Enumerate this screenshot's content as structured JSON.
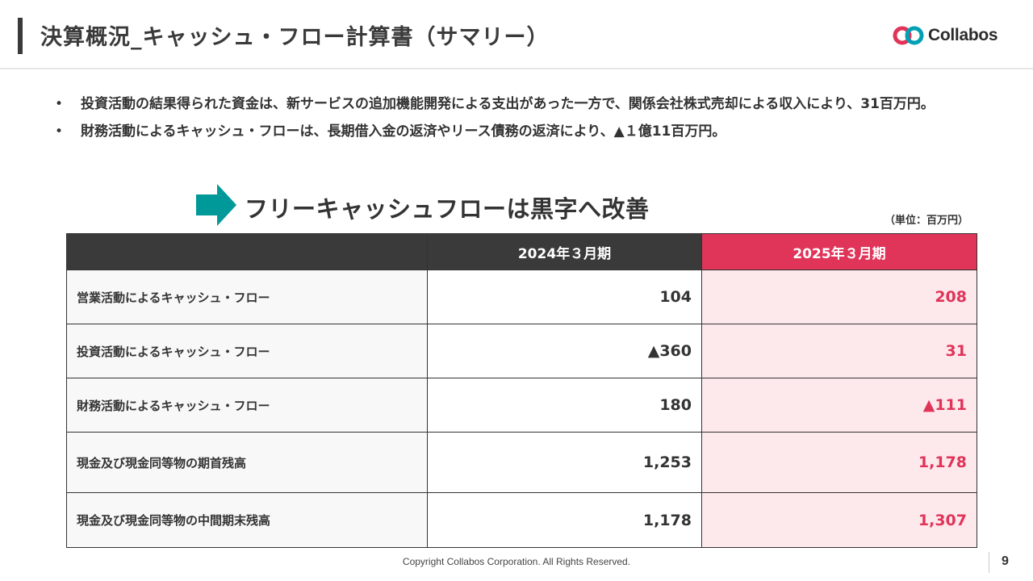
{
  "header": {
    "title": "決算概況_キャッシュ・フロー計算書（サマリー）",
    "logo_text": "Collabos"
  },
  "bullets": [
    "投資活動の結果得られた資金は、新サービスの追加機能開発による支出があった一方で、関係会社株式売却による収入により、31百万円。",
    "財務活動によるキャッシュ・フローは、長期借入金の返済やリース債務の返済により、▲１億11百万円。"
  ],
  "highlight": {
    "icon": "right-arrow-icon",
    "text": "フリーキャッシュフローは黒字へ改善"
  },
  "table": {
    "unit": "（単位：百万円）",
    "columns": [
      "",
      "2024年３月期",
      "2025年３月期"
    ],
    "rows": [
      {
        "label": "営業活動によるキャッシュ・フロー",
        "fy2024": "104",
        "fy2025": "208"
      },
      {
        "label": "投資活動によるキャッシュ・フロー",
        "fy2024": "▲360",
        "fy2025": "31"
      },
      {
        "label": "財務活動によるキャッシュ・フロー",
        "fy2024": "180",
        "fy2025": "▲111"
      },
      {
        "label": "現金及び現金同等物の期首残高",
        "fy2024": "1,253",
        "fy2025": "1,178"
      },
      {
        "label": "現金及び現金同等物の中間期末残高",
        "fy2024": "1,178",
        "fy2025": "1,307"
      }
    ]
  },
  "footer": {
    "copyright": "Copyright Collabos Corporation. All Rights Reserved.",
    "page_number": "9"
  },
  "colors": {
    "accent": "#e03459",
    "accent_light": "#fde9ec",
    "header_dark": "#3a3a3a",
    "arrow_teal": "#00999a"
  }
}
